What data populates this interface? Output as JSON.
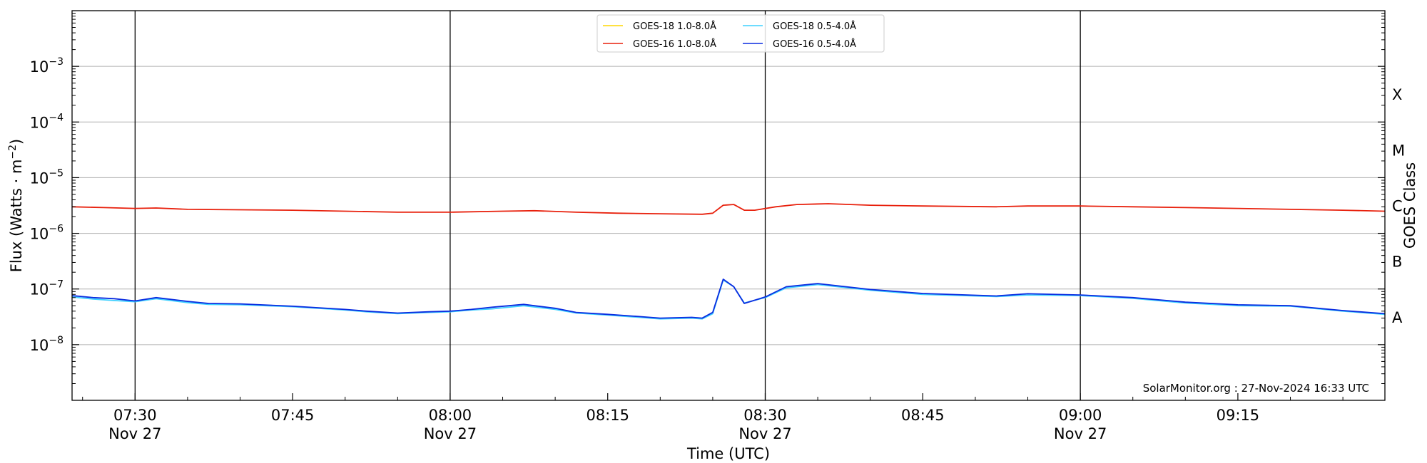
{
  "chart_data": {
    "type": "line",
    "xlabel": "Time (UTC)",
    "ylabel": "Flux (Watts · m⁻²)",
    "right_label": "GOES Class",
    "credit": "SolarMonitor.org : 27-Nov-2024 16:33 UTC",
    "x_range": [
      "07:24",
      "09:29"
    ],
    "y_scale": "log",
    "ylim": [
      1e-09,
      0.01
    ],
    "y_ticks": [
      {
        "value": 1e-08,
        "mantissa": "10",
        "exp": "−8"
      },
      {
        "value": 1e-07,
        "mantissa": "10",
        "exp": "−7"
      },
      {
        "value": 1e-06,
        "mantissa": "10",
        "exp": "−6"
      },
      {
        "value": 1e-05,
        "mantissa": "10",
        "exp": "−5"
      },
      {
        "value": 0.0001,
        "mantissa": "10",
        "exp": "−4"
      },
      {
        "value": 0.001,
        "mantissa": "10",
        "exp": "−3"
      }
    ],
    "x_ticks": [
      {
        "time": "07:30",
        "line1": "07:30",
        "line2": "Nov 27",
        "vline": true
      },
      {
        "time": "07:45",
        "line1": "07:45",
        "line2": "",
        "vline": false
      },
      {
        "time": "08:00",
        "line1": "08:00",
        "line2": "Nov 27",
        "vline": true
      },
      {
        "time": "08:15",
        "line1": "08:15",
        "line2": "",
        "vline": false
      },
      {
        "time": "08:30",
        "line1": "08:30",
        "line2": "Nov 27",
        "vline": true
      },
      {
        "time": "08:45",
        "line1": "08:45",
        "line2": "",
        "vline": false
      },
      {
        "time": "09:00",
        "line1": "09:00",
        "line2": "Nov 27",
        "vline": true
      },
      {
        "time": "09:15",
        "line1": "09:15",
        "line2": "",
        "vline": false
      }
    ],
    "goes_classes": [
      {
        "label": "A",
        "value": 3.16e-08
      },
      {
        "label": "B",
        "value": 3.16e-07
      },
      {
        "label": "C",
        "value": 3.16e-06
      },
      {
        "label": "M",
        "value": 3.16e-05
      },
      {
        "label": "X",
        "value": 0.000316
      }
    ],
    "grid": "horizontal",
    "legend_position": "top-center",
    "series": [
      {
        "name": "GOES-18 1.0-8.0Å",
        "color": "#ffd700",
        "points": []
      },
      {
        "name": "GOES-16 1.0-8.0Å",
        "color": "#e8200c",
        "points": [
          [
            "07:24",
            3e-06
          ],
          [
            "07:27",
            2.9e-06
          ],
          [
            "07:30",
            2.8e-06
          ],
          [
            "07:32",
            2.85e-06
          ],
          [
            "07:35",
            2.7e-06
          ],
          [
            "07:40",
            2.65e-06
          ],
          [
            "07:45",
            2.6e-06
          ],
          [
            "07:50",
            2.5e-06
          ],
          [
            "07:55",
            2.4e-06
          ],
          [
            "08:00",
            2.4e-06
          ],
          [
            "08:05",
            2.5e-06
          ],
          [
            "08:08",
            2.55e-06
          ],
          [
            "08:12",
            2.4e-06
          ],
          [
            "08:16",
            2.3e-06
          ],
          [
            "08:20",
            2.25e-06
          ],
          [
            "08:24",
            2.2e-06
          ],
          [
            "08:25",
            2.3e-06
          ],
          [
            "08:26",
            3.2e-06
          ],
          [
            "08:27",
            3.3e-06
          ],
          [
            "08:28",
            2.6e-06
          ],
          [
            "08:29",
            2.6e-06
          ],
          [
            "08:31",
            3e-06
          ],
          [
            "08:33",
            3.3e-06
          ],
          [
            "08:36",
            3.4e-06
          ],
          [
            "08:40",
            3.2e-06
          ],
          [
            "08:45",
            3.1e-06
          ],
          [
            "08:52",
            3e-06
          ],
          [
            "08:55",
            3.1e-06
          ],
          [
            "09:00",
            3.1e-06
          ],
          [
            "09:05",
            3e-06
          ],
          [
            "09:10",
            2.9e-06
          ],
          [
            "09:15",
            2.8e-06
          ],
          [
            "09:20",
            2.7e-06
          ],
          [
            "09:25",
            2.6e-06
          ],
          [
            "09:29",
            2.5e-06
          ]
        ]
      },
      {
        "name": "GOES-18 0.5-4.0Å",
        "color": "#3fd0ff",
        "points": [
          [
            "07:24",
            7.2e-08
          ],
          [
            "07:26",
            6.6e-08
          ],
          [
            "07:28",
            6.2e-08
          ],
          [
            "07:30",
            5.9e-08
          ],
          [
            "07:32",
            6.7e-08
          ],
          [
            "07:35",
            5.7e-08
          ],
          [
            "07:37",
            5.3e-08
          ],
          [
            "07:40",
            5.2e-08
          ],
          [
            "07:45",
            4.8e-08
          ],
          [
            "07:50",
            4.2e-08
          ],
          [
            "07:52",
            3.9e-08
          ],
          [
            "07:55",
            3.6e-08
          ],
          [
            "07:58",
            3.8e-08
          ],
          [
            "08:00",
            3.9e-08
          ],
          [
            "08:02",
            4.2e-08
          ],
          [
            "08:04",
            4.4e-08
          ],
          [
            "08:07",
            5e-08
          ],
          [
            "08:10",
            4.3e-08
          ],
          [
            "08:12",
            3.7e-08
          ],
          [
            "08:15",
            3.4e-08
          ],
          [
            "08:18",
            3.1e-08
          ],
          [
            "08:20",
            2.9e-08
          ],
          [
            "08:23",
            3e-08
          ],
          [
            "08:24",
            2.9e-08
          ],
          [
            "08:25",
            3.6e-08
          ],
          [
            "08:26",
            1.45e-07
          ],
          [
            "08:27",
            1.1e-07
          ],
          [
            "08:28",
            5.6e-08
          ],
          [
            "08:30",
            7e-08
          ],
          [
            "08:32",
            1.05e-07
          ],
          [
            "08:35",
            1.2e-07
          ],
          [
            "08:40",
            9.5e-08
          ],
          [
            "08:45",
            8e-08
          ],
          [
            "08:52",
            7.3e-08
          ],
          [
            "08:55",
            7.8e-08
          ],
          [
            "09:00",
            7.6e-08
          ],
          [
            "09:05",
            6.8e-08
          ],
          [
            "09:10",
            5.6e-08
          ],
          [
            "09:15",
            5e-08
          ],
          [
            "09:20",
            4.9e-08
          ],
          [
            "09:25",
            4e-08
          ],
          [
            "09:29",
            3.5e-08
          ]
        ]
      },
      {
        "name": "GOES-16 0.5-4.0Å",
        "color": "#0a2ce0",
        "points": [
          [
            "07:24",
            7.6e-08
          ],
          [
            "07:26",
            7e-08
          ],
          [
            "07:28",
            6.7e-08
          ],
          [
            "07:30",
            6.1e-08
          ],
          [
            "07:32",
            7e-08
          ],
          [
            "07:35",
            6e-08
          ],
          [
            "07:37",
            5.5e-08
          ],
          [
            "07:40",
            5.4e-08
          ],
          [
            "07:45",
            4.9e-08
          ],
          [
            "07:50",
            4.3e-08
          ],
          [
            "07:52",
            4e-08
          ],
          [
            "07:55",
            3.7e-08
          ],
          [
            "07:58",
            3.9e-08
          ],
          [
            "08:00",
            4e-08
          ],
          [
            "08:02",
            4.3e-08
          ],
          [
            "08:04",
            4.7e-08
          ],
          [
            "08:07",
            5.3e-08
          ],
          [
            "08:10",
            4.5e-08
          ],
          [
            "08:12",
            3.8e-08
          ],
          [
            "08:15",
            3.5e-08
          ],
          [
            "08:18",
            3.2e-08
          ],
          [
            "08:20",
            3e-08
          ],
          [
            "08:23",
            3.1e-08
          ],
          [
            "08:24",
            3e-08
          ],
          [
            "08:25",
            3.8e-08
          ],
          [
            "08:26",
            1.5e-07
          ],
          [
            "08:27",
            1.1e-07
          ],
          [
            "08:28",
            5.5e-08
          ],
          [
            "08:30",
            7.2e-08
          ],
          [
            "08:32",
            1.1e-07
          ],
          [
            "08:35",
            1.25e-07
          ],
          [
            "08:40",
            9.8e-08
          ],
          [
            "08:45",
            8.3e-08
          ],
          [
            "08:52",
            7.5e-08
          ],
          [
            "08:55",
            8.2e-08
          ],
          [
            "09:00",
            7.8e-08
          ],
          [
            "09:05",
            7e-08
          ],
          [
            "09:10",
            5.8e-08
          ],
          [
            "09:15",
            5.2e-08
          ],
          [
            "09:20",
            5e-08
          ],
          [
            "09:25",
            4.1e-08
          ],
          [
            "09:29",
            3.6e-08
          ]
        ]
      }
    ]
  }
}
